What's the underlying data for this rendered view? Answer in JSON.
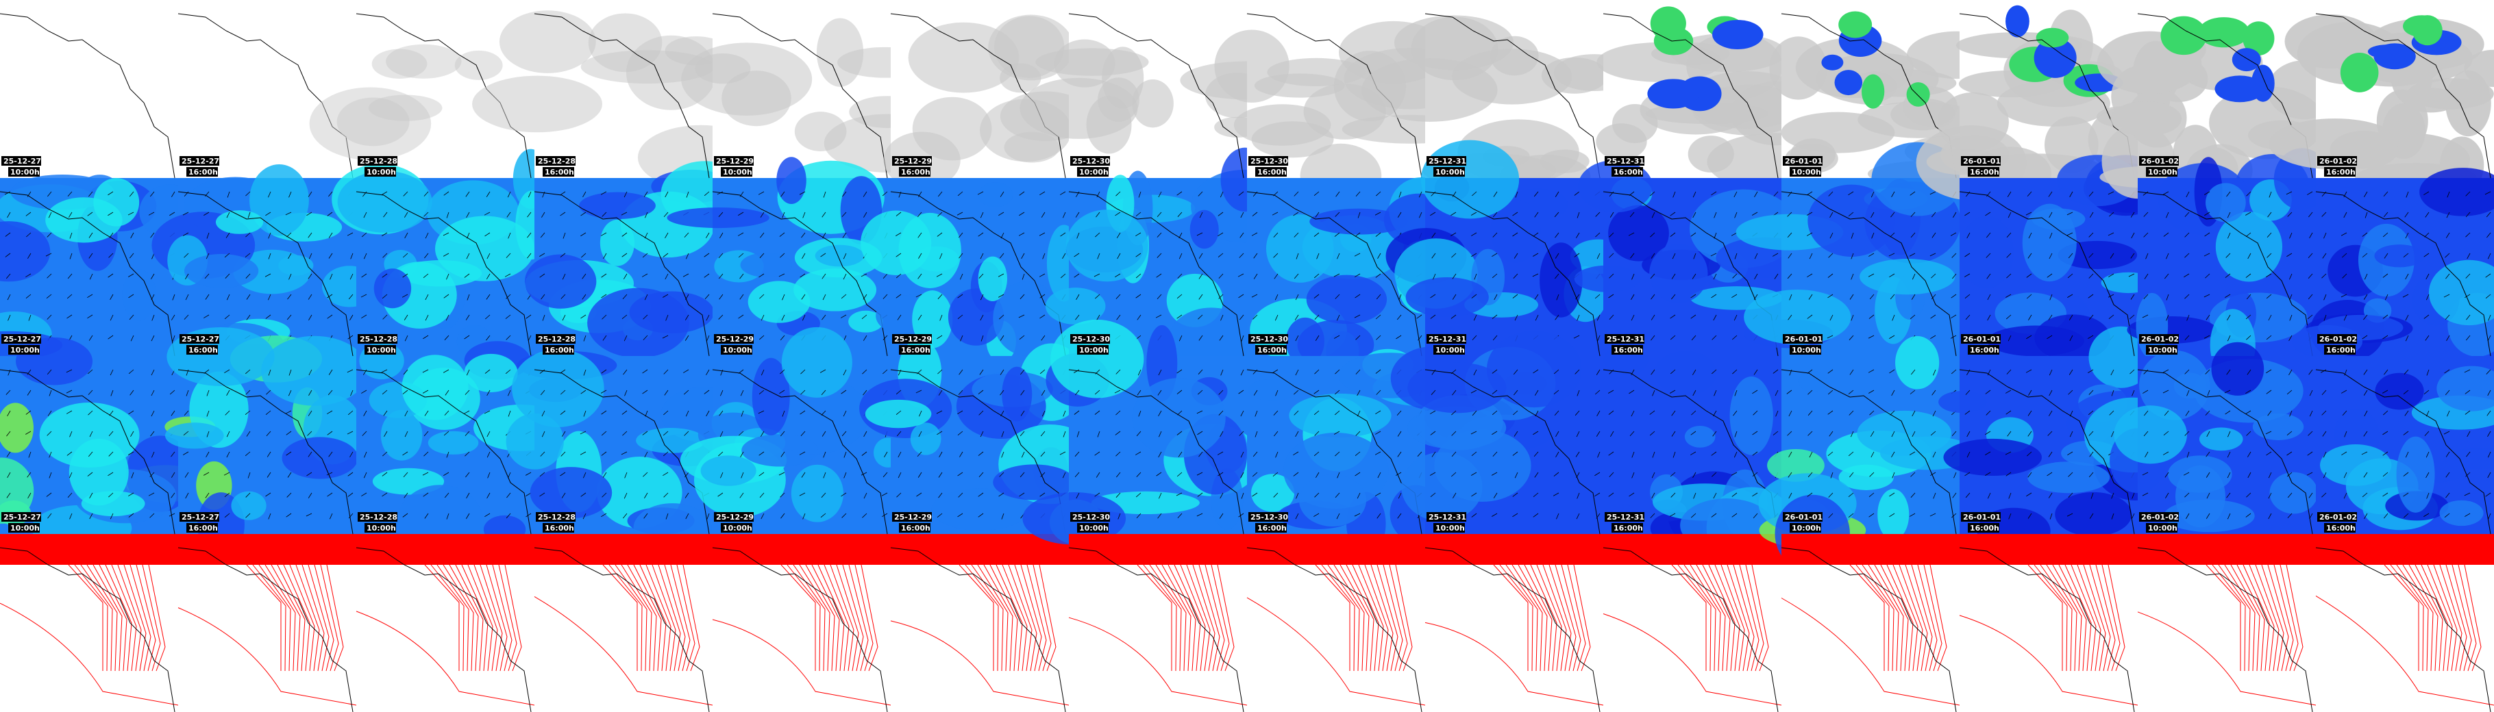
{
  "panels": [
    {
      "date": "25-12-27",
      "time": "10:00h"
    },
    {
      "date": "25-12-27",
      "time": "16:00h"
    },
    {
      "date": "25-12-28",
      "time": "10:00h"
    },
    {
      "date": "25-12-28",
      "time": "16:00h"
    },
    {
      "date": "25-12-29",
      "time": "10:00h"
    },
    {
      "date": "25-12-29",
      "time": "16:00h"
    },
    {
      "date": "25-12-30",
      "time": "10:00h"
    },
    {
      "date": "25-12-30",
      "time": "16:00h"
    },
    {
      "date": "25-12-31",
      "time": "10:00h"
    },
    {
      "date": "25-12-31",
      "time": "16:00h"
    },
    {
      "date": "26-01-01",
      "time": "10:00h"
    },
    {
      "date": "26-01-01",
      "time": "16:00h"
    },
    {
      "date": "26-01-02",
      "time": "10:00h"
    },
    {
      "date": "26-01-02",
      "time": "16:00h"
    }
  ]
}
